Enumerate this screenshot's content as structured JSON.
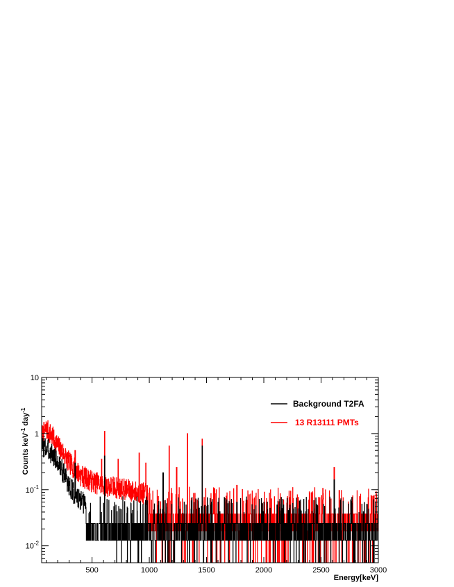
{
  "chart_data": {
    "type": "line",
    "title": "",
    "xlabel": "Energy[keV]",
    "ylabel": {
      "base": "Counts keV",
      "exp1": "-1",
      "mid": " day",
      "exp2": "-1"
    },
    "x_scale": "linear",
    "y_scale": "log",
    "xlim": [
      60,
      3000
    ],
    "ylim": [
      0.005,
      10
    ],
    "x_ticks": [
      500,
      1000,
      1500,
      2000,
      2500,
      3000
    ],
    "x_tick_labels": [
      "500",
      "1000",
      "1500",
      "2000",
      "2500",
      "3000"
    ],
    "y_ticks": [
      0.01,
      0.1,
      1,
      10
    ],
    "y_tick_labels": [
      {
        "base": "10",
        "exp": "-2"
      },
      {
        "base": "10",
        "exp": "-1"
      },
      {
        "base": "1",
        "exp": ""
      },
      {
        "base": "10",
        "exp": ""
      }
    ],
    "grid": false,
    "legend_position": "top-right",
    "series": [
      {
        "name": "Background T2FA",
        "color": "#000000",
        "continuum": [
          [
            60,
            0.6
          ],
          [
            100,
            0.55
          ],
          [
            150,
            0.45
          ],
          [
            200,
            0.3
          ],
          [
            250,
            0.2
          ],
          [
            300,
            0.12
          ],
          [
            350,
            0.08
          ],
          [
            400,
            0.06
          ],
          [
            500,
            0.05
          ],
          [
            700,
            0.04
          ],
          [
            1000,
            0.035
          ],
          [
            1500,
            0.03
          ],
          [
            2000,
            0.028
          ],
          [
            3000,
            0.025
          ]
        ],
        "floor_counts": [
          0.0125,
          0.025
        ],
        "peaks": [
          [
            352,
            0.3
          ],
          [
            609,
            0.4
          ],
          [
            1120,
            0.2
          ],
          [
            1461,
            0.6
          ],
          [
            1764,
            0.06
          ],
          [
            2614,
            0.15
          ]
        ]
      },
      {
        "name": "13 R13111 PMTs",
        "color": "#ff0000",
        "continuum": [
          [
            60,
            0.9
          ],
          [
            100,
            1.2
          ],
          [
            150,
            0.9
          ],
          [
            200,
            0.6
          ],
          [
            250,
            0.45
          ],
          [
            300,
            0.3
          ],
          [
            400,
            0.18
          ],
          [
            500,
            0.14
          ],
          [
            600,
            0.12
          ],
          [
            800,
            0.1
          ],
          [
            1000,
            0.08
          ],
          [
            1200,
            0.06
          ],
          [
            1500,
            0.045
          ],
          [
            2000,
            0.035
          ],
          [
            3000,
            0.035
          ]
        ],
        "floor_counts": [
          0.0185,
          0.037
        ],
        "peaks": [
          [
            352,
            0.5
          ],
          [
            583,
            0.35
          ],
          [
            609,
            1.1
          ],
          [
            727,
            0.35
          ],
          [
            911,
            0.45
          ],
          [
            969,
            0.3
          ],
          [
            1173,
            0.6
          ],
          [
            1238,
            0.25
          ],
          [
            1333,
            1.0
          ],
          [
            1461,
            0.8
          ],
          [
            1764,
            0.12
          ],
          [
            2204,
            0.07
          ],
          [
            2614,
            0.25
          ]
        ]
      }
    ]
  }
}
